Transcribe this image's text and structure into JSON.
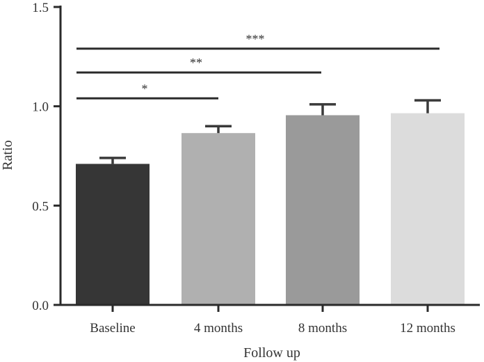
{
  "chart_data": {
    "type": "bar",
    "xlabel": "Follow up",
    "ylabel": "Ratio",
    "ylim": [
      0,
      1.5
    ],
    "yticks": [
      0.0,
      0.5,
      1.0,
      1.5
    ],
    "ytick_labels": [
      "0.0",
      "0.5",
      "1.0",
      "1.5"
    ],
    "categories": [
      "Baseline",
      "4 months",
      "8 months",
      "12 months"
    ],
    "values": [
      0.71,
      0.865,
      0.955,
      0.965
    ],
    "error_upper": [
      0.74,
      0.9,
      1.01,
      1.03
    ],
    "bar_colors": [
      "#363636",
      "#b0b0b0",
      "#9a9a9a",
      "#dcdcdc"
    ],
    "grid": false,
    "significance": [
      {
        "from": 0,
        "to": 1,
        "y": 1.04,
        "label": "*"
      },
      {
        "from": 0,
        "to": 2,
        "y": 1.17,
        "label": "**"
      },
      {
        "from": 0,
        "to": 3,
        "y": 1.29,
        "label": "***"
      }
    ]
  }
}
